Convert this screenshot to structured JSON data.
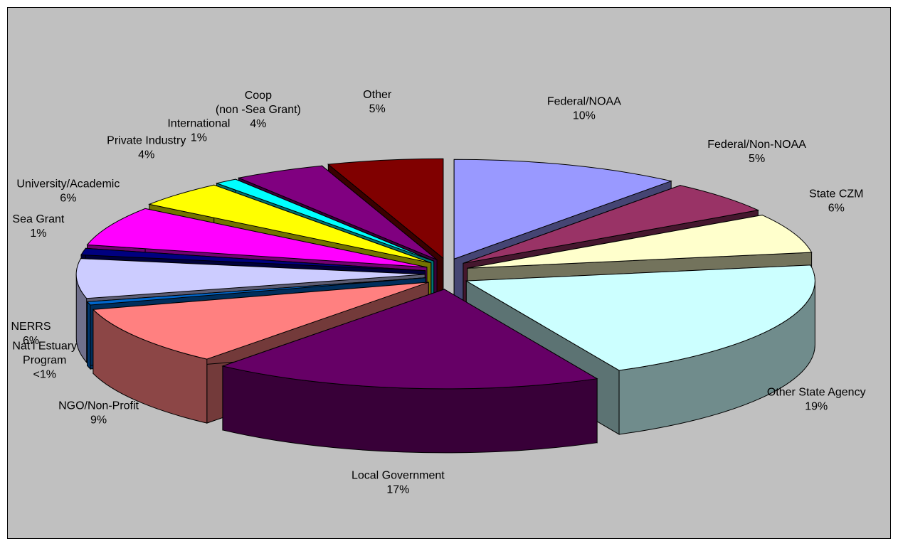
{
  "chart_data": {
    "type": "pie3d",
    "categories": [
      "Federal/NOAA",
      "Federal/Non-NOAA",
      "State CZM",
      "Other State Agency",
      "Local Government",
      "NGO/Non-Profit",
      "Nat’l Estuary\nProgram",
      "NERRS",
      "Sea Grant",
      "University/Academic",
      "Private Industry",
      "International",
      "Coop\n(non -Sea Grant)",
      "Other"
    ],
    "values": [
      10,
      5,
      6,
      19,
      17,
      9,
      0.5,
      6,
      1,
      6,
      4,
      1,
      4,
      5
    ],
    "value_labels": [
      "10%",
      "5%",
      "6%",
      "19%",
      "17%",
      "9%",
      "<1%",
      "6%",
      "1%",
      "6%",
      "4%",
      "1%",
      "4%",
      "5%"
    ],
    "colors": [
      "#9999ff",
      "#993366",
      "#ffffcc",
      "#ccffff",
      "#660066",
      "#ff8080",
      "#0066cc",
      "#ccccff",
      "#000080",
      "#ff00ff",
      "#ffff00",
      "#00ffff",
      "#800080",
      "#800000"
    ]
  }
}
